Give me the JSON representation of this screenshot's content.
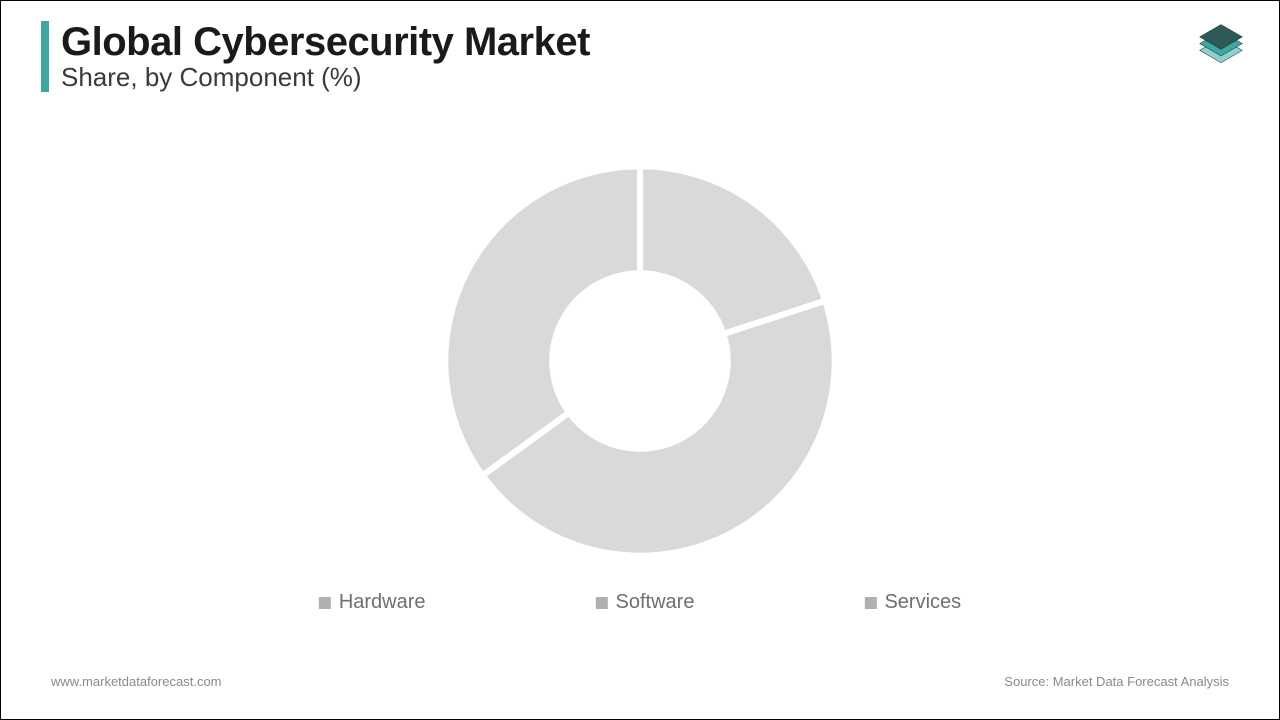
{
  "header": {
    "title": "Global Cybersecurity Market",
    "subtitle": "Share, by Component (%)",
    "accent_color": "#3fa7a3"
  },
  "logo": {
    "colors": {
      "top": "#2d5a56",
      "mid": "#3fa7a3",
      "bot": "#8fd0cc"
    }
  },
  "chart": {
    "type": "donut",
    "inner_radius_ratio": 0.45,
    "background_color": "#ffffff",
    "gap_stroke_color": "#ffffff",
    "gap_stroke_width": 3,
    "start_angle_deg": -90,
    "slices": [
      {
        "label": "Hardware",
        "value": 20,
        "color": "#d9d9d9"
      },
      {
        "label": "Software",
        "value": 45,
        "color": "#d9d9d9"
      },
      {
        "label": "Services",
        "value": 35,
        "color": "#d9d9d9"
      }
    ]
  },
  "legend": {
    "items": [
      {
        "label": "Hardware",
        "color": "#b0b0b0"
      },
      {
        "label": "Software",
        "color": "#b0b0b0"
      },
      {
        "label": "Services",
        "color": "#b0b0b0"
      }
    ],
    "text_color": "#6f6f6f",
    "fontsize": 20
  },
  "footer": {
    "left": "www.marketdataforecast.com",
    "right": "Source: Market Data Forecast Analysis",
    "color": "#8a8a8a",
    "fontsize": 13
  }
}
